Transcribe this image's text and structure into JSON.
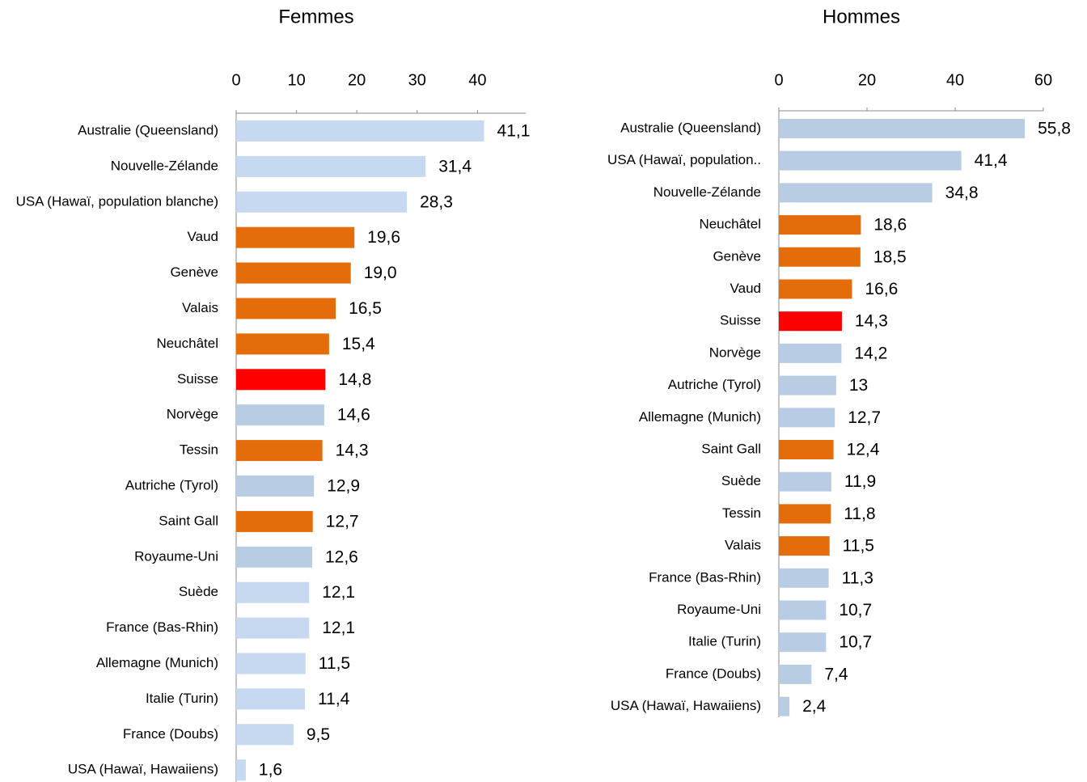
{
  "chart_data": [
    {
      "type": "bar",
      "title": "Femmes",
      "categories": [
        "Australie (Queensland)",
        "Nouvelle-Zélande",
        "USA (Hawaï, population blanche)",
        "Vaud",
        "Genève",
        "Valais",
        "Neuchâtel",
        "Suisse",
        "Norvège",
        "Tessin",
        "Autriche (Tyrol)",
        "Saint Gall",
        "Royaume-Uni",
        "Suède",
        "France (Bas-Rhin)",
        "Allemagne (Munich)",
        "Italie (Turin)",
        "France (Doubs)",
        "USA (Hawaï, Hawaiiens)"
      ],
      "values": [
        41.1,
        31.4,
        28.3,
        19.6,
        19.0,
        16.5,
        15.4,
        14.8,
        14.6,
        14.3,
        12.9,
        12.7,
        12.6,
        12.1,
        12.1,
        11.5,
        11.4,
        9.5,
        1.6
      ],
      "value_labels": [
        "41,1",
        "31,4",
        "28,3",
        "19,6",
        "19,0",
        "16,5",
        "15,4",
        "14,8",
        "14,6",
        "14,3",
        "12,9",
        "12,7",
        "12,6",
        "12,1",
        "12,1",
        "11,5",
        "11,4",
        "9,5",
        "1,6"
      ],
      "colors": [
        "#c6d9f1",
        "#c6d9f1",
        "#c6d9f1",
        "#e46c0a",
        "#e46c0a",
        "#e46c0a",
        "#e46c0a",
        "#ff0000",
        "#b8cce4",
        "#e46c0a",
        "#b8cce4",
        "#e46c0a",
        "#b8cce4",
        "#c6d9f1",
        "#c6d9f1",
        "#c6d9f1",
        "#c6d9f1",
        "#c6d9f1",
        "#c6d9f1"
      ],
      "xlim": [
        0,
        48
      ],
      "xticks": [
        0,
        10,
        20,
        30,
        40
      ]
    },
    {
      "type": "bar",
      "title": "Hommes",
      "categories": [
        "Australie (Queensland)",
        "USA (Hawaï, population..",
        "Nouvelle-Zélande",
        "Neuchâtel",
        "Genève",
        "Vaud",
        "Suisse",
        "Norvège",
        "Autriche (Tyrol)",
        "Allemagne (Munich)",
        "Saint Gall",
        "Suède",
        "Tessin",
        "Valais",
        "France (Bas-Rhin)",
        "Royaume-Uni",
        "Italie (Turin)",
        "France (Doubs)",
        "USA (Hawaï, Hawaiiens)"
      ],
      "values": [
        55.8,
        41.4,
        34.8,
        18.6,
        18.5,
        16.6,
        14.3,
        14.2,
        13,
        12.7,
        12.4,
        11.9,
        11.8,
        11.5,
        11.3,
        10.7,
        10.7,
        7.4,
        2.4
      ],
      "value_labels": [
        "55,8",
        "41,4",
        "34,8",
        "18,6",
        "18,5",
        "16,6",
        "14,3",
        "14,2",
        "13",
        "12,7",
        "12,4",
        "11,9",
        "11,8",
        "11,5",
        "11,3",
        "10,7",
        "10,7",
        "7,4",
        "2,4"
      ],
      "colors": [
        "#b8cce4",
        "#b8cce4",
        "#b8cce4",
        "#e46c0a",
        "#e46c0a",
        "#e46c0a",
        "#ff0000",
        "#b8cce4",
        "#b8cce4",
        "#b8cce4",
        "#e46c0a",
        "#b8cce4",
        "#e46c0a",
        "#e46c0a",
        "#b8cce4",
        "#b8cce4",
        "#b8cce4",
        "#b8cce4",
        "#b8cce4"
      ],
      "xlim": [
        0,
        60
      ],
      "xticks": [
        0,
        20,
        40,
        60
      ]
    }
  ]
}
